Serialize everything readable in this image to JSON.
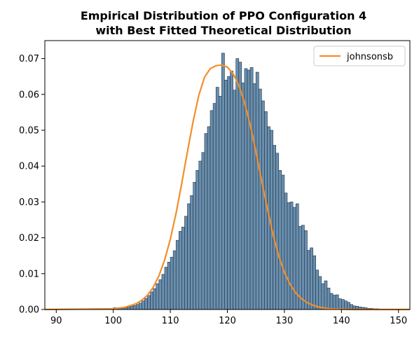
{
  "chart_data": {
    "type": "bar",
    "title_lines": [
      "Empirical Distribution of PPO Configuration 4",
      "with Best Fitted Theoretical Distribution"
    ],
    "xlabel": "",
    "ylabel": "",
    "xlim": [
      88,
      152
    ],
    "ylim": [
      0,
      0.075
    ],
    "x_ticks": [
      90,
      100,
      110,
      120,
      130,
      140,
      150
    ],
    "y_ticks": [
      0.0,
      0.01,
      0.02,
      0.03,
      0.04,
      0.05,
      0.06,
      0.07
    ],
    "y_tick_labels": [
      "0.00",
      "0.01",
      "0.02",
      "0.03",
      "0.04",
      "0.05",
      "0.06",
      "0.07"
    ],
    "grid": false,
    "legend": {
      "placement": "top-right",
      "entries": [
        "johnsonsb"
      ]
    },
    "histogram": {
      "name": "",
      "color": "#6a8fae",
      "edge_color": "#1f3244",
      "bin_start": 100,
      "bin_width": 0.5,
      "values": [
        0.0005,
        0.0001,
        0.0003,
        0.0004,
        0.0005,
        0.0007,
        0.0009,
        0.0011,
        0.0014,
        0.0018,
        0.0024,
        0.0031,
        0.0039,
        0.0049,
        0.0058,
        0.0072,
        0.0083,
        0.0098,
        0.0118,
        0.0132,
        0.0146,
        0.0164,
        0.0193,
        0.0218,
        0.023,
        0.026,
        0.0295,
        0.0318,
        0.0355,
        0.0388,
        0.0414,
        0.0438,
        0.0491,
        0.051,
        0.0555,
        0.0575,
        0.062,
        0.0595,
        0.0715,
        0.064,
        0.065,
        0.0665,
        0.0612,
        0.07,
        0.069,
        0.0632,
        0.0672,
        0.0668,
        0.0675,
        0.063,
        0.0662,
        0.0615,
        0.0582,
        0.0552,
        0.051,
        0.05,
        0.0458,
        0.0436,
        0.0388,
        0.0375,
        0.0325,
        0.0298,
        0.03,
        0.0285,
        0.0295,
        0.0232,
        0.0235,
        0.022,
        0.0165,
        0.0172,
        0.015,
        0.011,
        0.0092,
        0.0072,
        0.008,
        0.006,
        0.0045,
        0.004,
        0.0041,
        0.003,
        0.0028,
        0.0024,
        0.002,
        0.0014,
        0.001,
        0.0009,
        0.0007,
        0.0006,
        0.0005,
        0.0003,
        0.0003,
        0.0002,
        0.0002,
        0.0001,
        0.0001,
        0.0001
      ]
    },
    "fitted_curve": {
      "name": "johnsonsb",
      "color": "#f28e2b",
      "x": [
        88,
        100,
        102,
        104,
        105,
        106,
        107,
        108,
        109,
        110,
        111,
        112,
        113,
        114,
        115,
        116,
        117,
        118,
        119,
        120,
        121,
        122,
        123,
        124,
        125,
        126,
        127,
        128,
        129,
        130,
        131,
        132,
        133,
        134,
        135,
        136,
        137,
        138,
        140,
        142,
        152
      ],
      "y": [
        0.0,
        0.0002,
        0.0006,
        0.0016,
        0.0026,
        0.004,
        0.0062,
        0.0094,
        0.0138,
        0.0196,
        0.0268,
        0.0352,
        0.044,
        0.0525,
        0.0598,
        0.0648,
        0.0672,
        0.068,
        0.0682,
        0.0676,
        0.0658,
        0.0626,
        0.0578,
        0.0515,
        0.044,
        0.036,
        0.0282,
        0.021,
        0.015,
        0.0104,
        0.007,
        0.0046,
        0.003,
        0.0019,
        0.0012,
        0.0007,
        0.0004,
        0.0002,
        0.0001,
        0.0,
        0.0
      ]
    }
  }
}
